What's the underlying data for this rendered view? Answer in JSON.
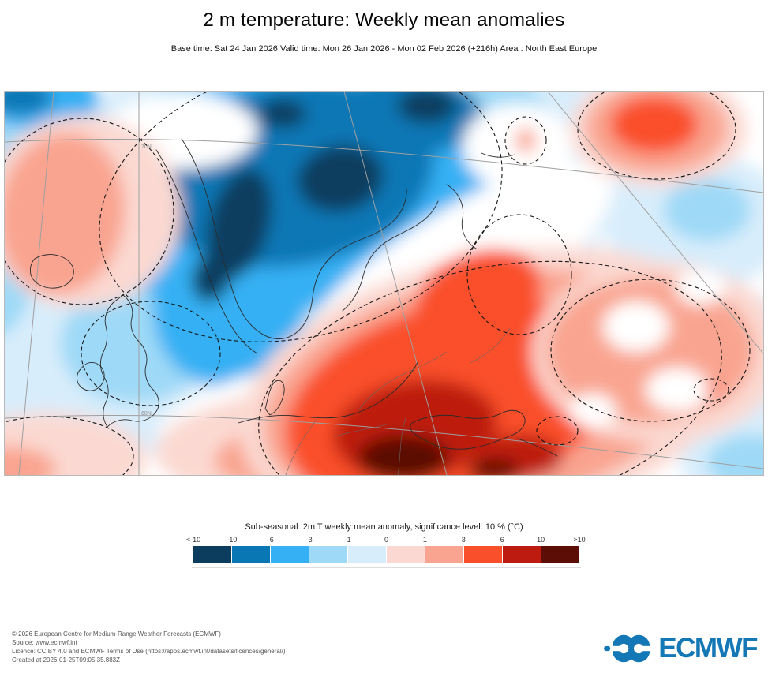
{
  "header": {
    "title": "2 m temperature: Weekly mean anomalies",
    "subtitle": "Base time: Sat 24 Jan 2026 Valid time: Mon 26 Jan 2026 - Mon 02 Feb 2026 (+216h) Area : North East Europe"
  },
  "map": {
    "graticule_labels": {
      "upper": "70N",
      "lower": "60N"
    },
    "border_color": "#b8b8b8",
    "anomaly_regions": {
      "negative_core": "Scandinavia / Finland (below -10 °C patches)",
      "positive_core": "Black Sea / Caucasus (above +10 °C patches)"
    }
  },
  "legend": {
    "title": "Sub-seasonal: 2m T weekly mean anomaly, significance level: 10 % (°C)",
    "ticks": [
      "<-10",
      "-10",
      "-6",
      "-3",
      "-1",
      "0",
      "1",
      "3",
      "6",
      "10",
      ">10"
    ],
    "colors": [
      "#0c3d5e",
      "#0a77b5",
      "#36b0f4",
      "#9ed9f7",
      "#d8edfb",
      "#fbd9d2",
      "#f9a490",
      "#fa4f2b",
      "#bd1a10",
      "#5c0d05"
    ]
  },
  "footer": {
    "lines": [
      "© 2026 European Centre for Medium-Range Weather Forecasts (ECMWF)",
      "Source: www.ecmwf.int",
      "Licence: CC BY 4.0 and ECMWF Terms of Use (https://apps.ecmwf.int/datasets/licences/general/)",
      "Created at 2026-01-25T09:05:35.883Z"
    ],
    "logo_text": "ECMWF",
    "logo_color": "#1578b6"
  }
}
